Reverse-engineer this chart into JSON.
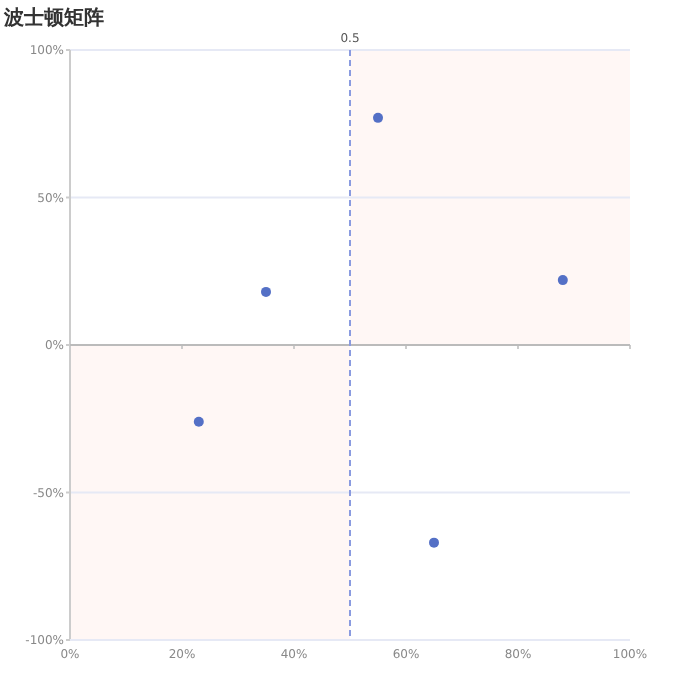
{
  "chart_data": {
    "type": "scatter",
    "title": "波士顿矩阵",
    "x": [
      0.35,
      0.55,
      0.88,
      0.23,
      0.65
    ],
    "series": [
      {
        "color": "#5470c6",
        "values": [
          0.18,
          0.77,
          0.22,
          -0.26,
          -0.67
        ]
      }
    ],
    "xlim": [
      0,
      1
    ],
    "xticks": [
      {
        "value": 0,
        "label": "0%"
      },
      {
        "value": 0.2,
        "label": "20%"
      },
      {
        "value": 0.4,
        "label": "40%"
      },
      {
        "value": 0.6,
        "label": "60%"
      },
      {
        "value": 0.8,
        "label": "80%"
      },
      {
        "value": 1,
        "label": "100%"
      }
    ],
    "ylim": [
      -1,
      1
    ],
    "yticks": [
      {
        "value": -1,
        "label": "-100%"
      },
      {
        "value": -0.5,
        "label": "-50%"
      },
      {
        "value": 0,
        "label": "0%"
      },
      {
        "value": 0.5,
        "label": "50%"
      },
      {
        "value": 1,
        "label": "100%"
      }
    ],
    "ref_lines": [
      {
        "axis": "x",
        "value": 0.5,
        "label": "0.5",
        "color": "#8a9be0",
        "line_style": "dashed"
      }
    ],
    "grid": "y",
    "marker": "circle"
  }
}
